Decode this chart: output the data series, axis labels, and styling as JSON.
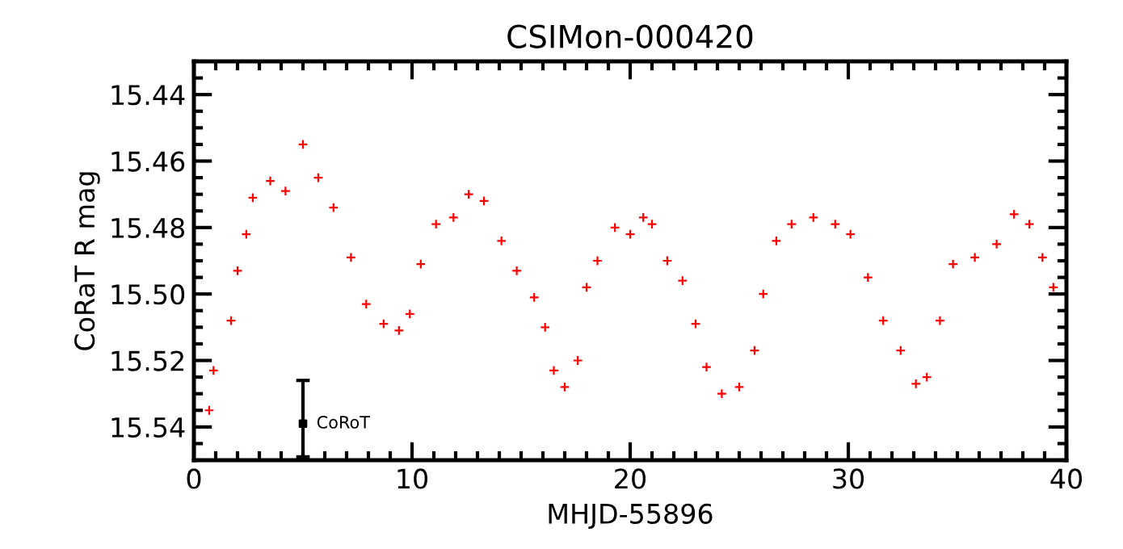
{
  "chart_data": {
    "type": "scatter",
    "title": "CSIMon-000420",
    "xlabel": "MHJD-55896",
    "ylabel": "CoRaT R mag",
    "xlim": [
      0,
      40
    ],
    "xticks": [
      0,
      10,
      20,
      30,
      40
    ],
    "ylim": [
      15.55,
      15.43
    ],
    "yticks": [
      15.44,
      15.46,
      15.48,
      {
        "value": 15.5,
        "label": "15.50"
      },
      15.52,
      15.54
    ],
    "marker": "cross",
    "grid": false,
    "legend": false,
    "series": [
      {
        "color": "#ff0000",
        "x": [
          0.7,
          0.9,
          1.7,
          2.0,
          2.4,
          2.7,
          3.5,
          4.2,
          5.0,
          5.7,
          6.4,
          7.2,
          7.9,
          8.7,
          9.4,
          9.9,
          10.4,
          11.1,
          11.9,
          12.6,
          13.3,
          14.1,
          14.8,
          15.6,
          16.1,
          16.5,
          17.0,
          17.6,
          18.0,
          18.5,
          19.3,
          20.0,
          20.6,
          21.0,
          21.7,
          22.4,
          23.0,
          23.5,
          24.2,
          25.0,
          25.7,
          26.1,
          26.7,
          27.4,
          28.4,
          29.4,
          30.1,
          30.9,
          31.6,
          32.4,
          33.1,
          33.6,
          34.2,
          34.8,
          35.8,
          36.8,
          37.6,
          38.3,
          38.9,
          39.4
        ],
        "values": [
          15.535,
          15.523,
          15.508,
          15.493,
          15.482,
          15.471,
          15.466,
          15.469,
          15.455,
          15.465,
          15.474,
          15.489,
          15.503,
          15.509,
          15.511,
          15.506,
          15.491,
          15.479,
          15.477,
          15.47,
          15.472,
          15.484,
          15.493,
          15.501,
          15.51,
          15.523,
          15.528,
          15.52,
          15.498,
          15.49,
          15.48,
          15.482,
          15.477,
          15.479,
          15.49,
          15.496,
          15.509,
          15.522,
          15.53,
          15.528,
          15.517,
          15.5,
          15.484,
          15.479,
          15.477,
          15.479,
          15.482,
          15.495,
          15.508,
          15.517,
          15.527,
          15.525,
          15.508,
          15.491,
          15.489,
          15.485,
          15.476,
          15.479,
          15.489,
          15.498
        ]
      },
      {
        "name": "CoRoT",
        "color": "#000000",
        "marker": "square",
        "x": [
          5
        ],
        "values": [
          15.539
        ],
        "errors": [
          [
            15.526,
            15.549
          ]
        ]
      }
    ]
  }
}
